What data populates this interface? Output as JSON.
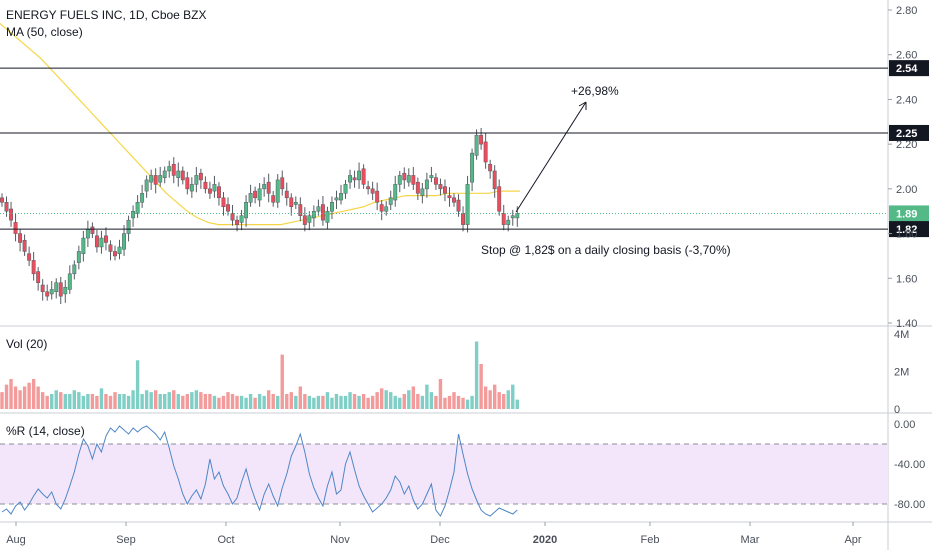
{
  "header": {
    "title": "ENERGY FUELS INC, 1D, Cboe BZX",
    "ma_label": "MA (50, close)"
  },
  "colors": {
    "up": "#53b987",
    "down": "#eb4d5c",
    "ma": "#f5d547",
    "wr_line": "#4f86c6",
    "wr_band": "#f3e6fb",
    "vol_up": "#7fcfc6",
    "vol_down": "#f39a9a",
    "hline": "#131722",
    "last": "#53b987"
  },
  "price_axis": {
    "ticks": [
      "2.80",
      "2.60",
      "2.40",
      "2.20",
      "2.00",
      "1.80",
      "1.60",
      "1.40"
    ],
    "tags": [
      {
        "label": "2.54",
        "value": 2.54,
        "style": "dark"
      },
      {
        "label": "2.25",
        "value": 2.25,
        "style": "dark"
      },
      {
        "label": "1.89",
        "value": 1.89,
        "style": "green"
      },
      {
        "label": "1.82",
        "value": 1.82,
        "style": "dark"
      }
    ]
  },
  "annotations": {
    "target": "+26,98%",
    "stop": "Stop @ 1,82$ on a daily closing basis (-3,70%)"
  },
  "volume_pane": {
    "label": "Vol (20)",
    "ticks": [
      "4M",
      "2M",
      "0"
    ]
  },
  "wr_pane": {
    "label": "%R (14, close)",
    "ticks": [
      "0.00",
      "-40.00",
      "-80.00"
    ]
  },
  "time_axis": [
    "Aug",
    "Sep",
    "Oct",
    "Nov",
    "Dec",
    "2020",
    "Feb",
    "Mar",
    "Apr"
  ],
  "chart_data": {
    "type": "candlestick",
    "title": "ENERGY FUELS INC, 1D, Cboe BZX",
    "ylim": [
      1.4,
      2.86
    ],
    "horizontal_levels": [
      2.54,
      2.25,
      1.89,
      1.82
    ],
    "series": [
      {
        "name": "MA (50, close)",
        "type": "line",
        "values": [
          2.74,
          2.7,
          2.66,
          2.62,
          2.58,
          2.53,
          2.48,
          2.43,
          2.38,
          2.33,
          2.28,
          2.23,
          2.18,
          2.13,
          2.08,
          2.03,
          1.98,
          1.94,
          1.9,
          1.87,
          1.85,
          1.84,
          1.84,
          1.84,
          1.84,
          1.84,
          1.84,
          1.84,
          1.85,
          1.86,
          1.87,
          1.88,
          1.89,
          1.9,
          1.91,
          1.92,
          1.94,
          1.95,
          1.96,
          1.97,
          1.97,
          1.97,
          1.97,
          1.98,
          1.98,
          1.98,
          1.98,
          1.98,
          1.99,
          1.99,
          1.99
        ]
      },
      {
        "name": "Vol (20)",
        "type": "bar",
        "values": [
          0.9,
          1.3,
          1.6,
          1.2,
          1.0,
          1.2,
          1.4,
          1.6,
          1.2,
          0.9,
          0.7,
          0.8,
          1.0,
          0.9,
          0.8,
          0.8,
          1.0,
          0.9,
          0.7,
          0.8,
          0.8,
          0.7,
          1.1,
          0.8,
          0.7,
          0.9,
          0.8,
          0.8,
          0.7,
          1.0,
          2.6,
          0.8,
          1.0,
          0.9,
          1.0,
          0.8,
          0.8,
          0.9,
          1.0,
          0.8,
          0.7,
          0.8,
          0.9,
          1.0,
          0.9,
          0.8,
          0.8,
          0.7,
          0.6,
          0.7,
          0.9,
          0.8,
          0.7,
          0.7,
          0.6,
          0.8,
          0.6,
          0.8,
          0.7,
          1.0,
          0.8,
          0.7,
          2.9,
          0.8,
          0.9,
          0.7,
          1.2,
          0.8,
          0.7,
          0.6,
          0.7,
          0.7,
          0.9,
          0.6,
          0.8,
          0.7,
          0.7,
          0.9,
          0.8,
          0.7,
          0.8,
          0.6,
          0.7,
          0.9,
          1.1,
          1.0,
          0.9,
          0.7,
          0.6,
          0.8,
          1.0,
          1.2,
          0.8,
          0.7,
          1.3,
          0.9,
          0.7,
          1.6,
          0.6,
          0.7,
          0.9,
          0.7,
          0.6,
          0.5,
          0.7,
          3.6,
          2.4,
          1.2,
          1.0,
          1.3,
          0.9,
          0.8,
          1.0,
          1.3,
          0.5
        ]
      },
      {
        "name": "%R (14, close)",
        "type": "line",
        "values": [
          -88,
          -85,
          -90,
          -82,
          -78,
          -86,
          -80,
          -72,
          -65,
          -70,
          -74,
          -68,
          -80,
          -85,
          -75,
          -62,
          -48,
          -30,
          -15,
          -22,
          -35,
          -20,
          -28,
          -12,
          -4,
          -8,
          -2,
          -6,
          -10,
          -4,
          -8,
          -4,
          -2,
          -6,
          -10,
          -16,
          -8,
          -24,
          -42,
          -55,
          -70,
          -80,
          -72,
          -66,
          -75,
          -60,
          -35,
          -55,
          -48,
          -62,
          -70,
          -80,
          -74,
          -58,
          -45,
          -62,
          -75,
          -86,
          -70,
          -60,
          -72,
          -82,
          -64,
          -50,
          -32,
          -22,
          -10,
          -28,
          -50,
          -64,
          -74,
          -82,
          -62,
          -48,
          -70,
          -66,
          -40,
          -28,
          -46,
          -62,
          -72,
          -80,
          -88,
          -84,
          -80,
          -74,
          -66,
          -52,
          -58,
          -70,
          -62,
          -76,
          -85,
          -80,
          -70,
          -60,
          -86,
          -92,
          -82,
          -66,
          -48,
          -10,
          -30,
          -50,
          -65,
          -76,
          -86,
          -90,
          -92,
          -88,
          -84,
          -86,
          -88,
          -90,
          -86
        ]
      }
    ]
  }
}
